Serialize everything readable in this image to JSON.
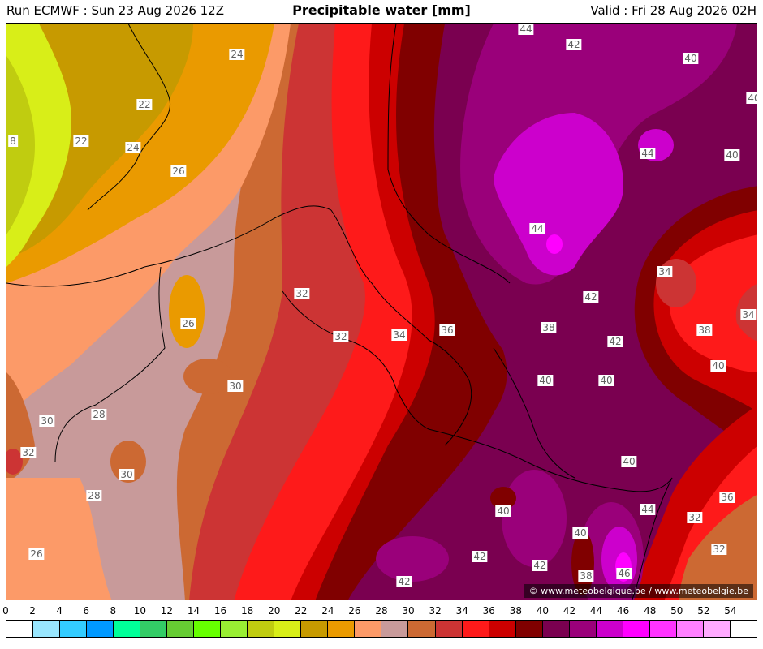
{
  "header": {
    "run": "Run ECMWF : Sun 23 Aug 2026 12Z",
    "title": "Precipitable water [mm]",
    "valid": "Valid : Fri 28 Aug 2026 02H"
  },
  "credit": "© www.meteobelgique.be / www.meteobelgie.be",
  "colors": {
    "c22_24": "#c79a00",
    "c24_26": "#ea9a00",
    "c26_28": "#fc9a68",
    "c28_30": "#c89a9a",
    "c30_32": "#cc6933",
    "c32_34": "#cc3434",
    "c34_36": "#fe1a1a",
    "c36_38": "#cc0000",
    "c38_40": "#800000",
    "c40_42": "#7a0050",
    "c42_44": "#9a007a",
    "c44_46": "#cc00cc",
    "c18_20": "#c0cc10",
    "c20_22": "#d8ee18"
  },
  "contour_labels": [
    {
      "text": "24"
    },
    {
      "text": "22"
    },
    {
      "text": "22"
    },
    {
      "text": "24"
    },
    {
      "text": "26"
    },
    {
      "text": "8"
    },
    {
      "text": "26"
    },
    {
      "text": "30"
    },
    {
      "text": "28"
    },
    {
      "text": "30"
    },
    {
      "text": "30"
    },
    {
      "text": "32"
    },
    {
      "text": "28"
    },
    {
      "text": "26"
    },
    {
      "text": "32"
    },
    {
      "text": "32"
    },
    {
      "text": "34"
    },
    {
      "text": "36"
    },
    {
      "text": "38"
    },
    {
      "text": "40"
    },
    {
      "text": "40"
    },
    {
      "text": "42"
    },
    {
      "text": "42"
    },
    {
      "text": "44"
    },
    {
      "text": "44"
    },
    {
      "text": "44"
    },
    {
      "text": "42"
    },
    {
      "text": "40"
    },
    {
      "text": "40"
    },
    {
      "text": "40"
    },
    {
      "text": "34"
    },
    {
      "text": "34"
    },
    {
      "text": "38"
    },
    {
      "text": "40"
    },
    {
      "text": "40"
    },
    {
      "text": "40"
    },
    {
      "text": "36"
    },
    {
      "text": "32"
    },
    {
      "text": "32"
    },
    {
      "text": "44"
    },
    {
      "text": "40"
    },
    {
      "text": "42"
    },
    {
      "text": "42"
    },
    {
      "text": "42"
    },
    {
      "text": "38"
    },
    {
      "text": "46"
    },
    {
      "text": "40"
    }
  ],
  "scale": {
    "ticks": [
      "0",
      "2",
      "4",
      "6",
      "8",
      "10",
      "12",
      "14",
      "16",
      "18",
      "20",
      "22",
      "24",
      "26",
      "28",
      "30",
      "32",
      "34",
      "36",
      "38",
      "40",
      "42",
      "44",
      "46",
      "48",
      "50",
      "52",
      "54"
    ],
    "colors": [
      "#ffffff",
      "#99e6fe",
      "#33ccff",
      "#0099ff",
      "#00ff99",
      "#33cc66",
      "#66cc33",
      "#66ff00",
      "#99ee33",
      "#c0cc10",
      "#d8ee18",
      "#c79a00",
      "#ea9a00",
      "#fc9a68",
      "#c89a9a",
      "#cc6933",
      "#cc3434",
      "#fe1a1a",
      "#cc0000",
      "#800000",
      "#7a0050",
      "#9a007a",
      "#cc00cc",
      "#ff00ff",
      "#ff33ff",
      "#ff80ff",
      "#ffaaff",
      "#ffffff"
    ]
  }
}
